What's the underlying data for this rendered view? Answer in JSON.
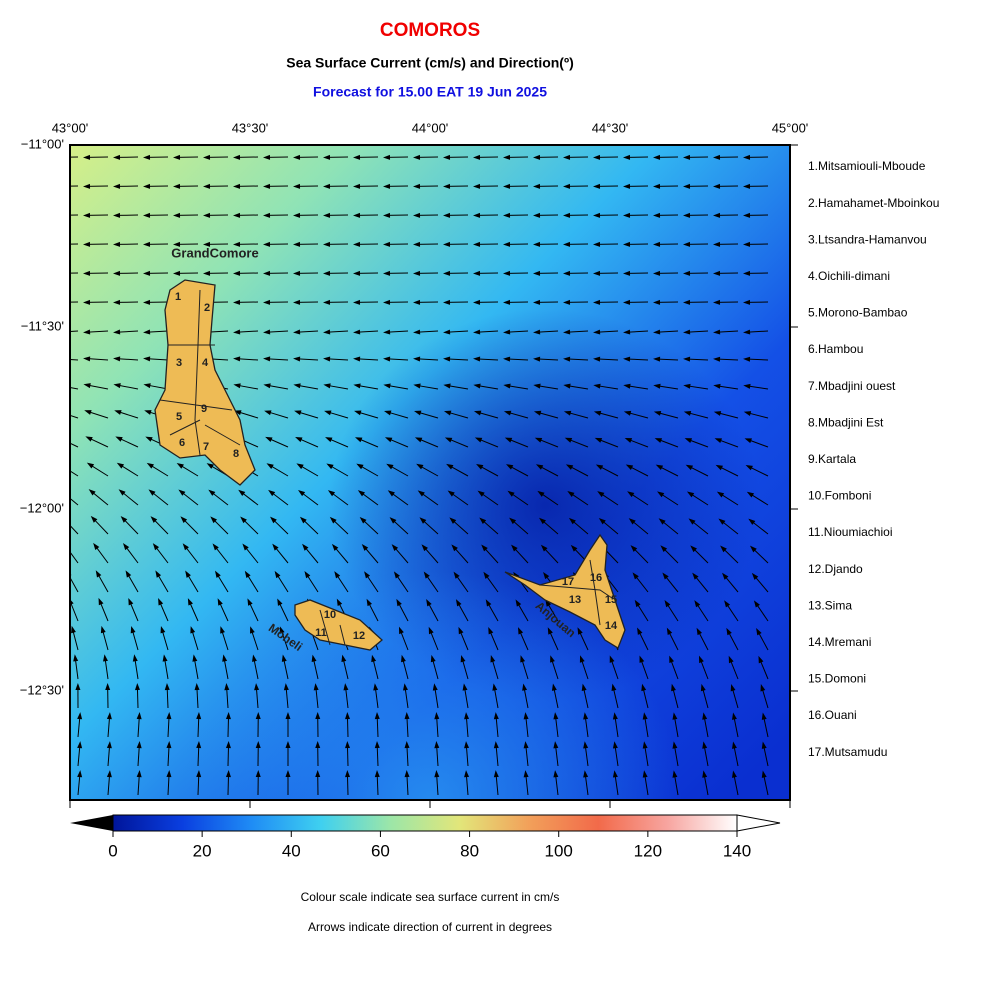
{
  "header": {
    "title": "COMOROS",
    "subtitle": "Sea Surface Current (cm/s) and Direction(º)",
    "forecast": "Forecast for  15.00 EAT 19 Jun 2025"
  },
  "map": {
    "lon_labels": [
      "43°00'",
      "43°30'",
      "44°00'",
      "44°30'",
      "45°00'"
    ],
    "lat_labels": [
      "−11°00'",
      "−11°30'",
      "−12°00'",
      "−12°30'"
    ],
    "island_labels": [
      "GrandComore",
      "Moheli",
      "Anjouan"
    ],
    "region_numbers": [
      "1",
      "2",
      "3",
      "4",
      "5",
      "6",
      "7",
      "8",
      "9",
      "10",
      "11",
      "12",
      "13",
      "14",
      "15",
      "16",
      "17"
    ]
  },
  "legend": {
    "regions": [
      "1.Mitsamiouli-Mboude",
      "2.Hamahamet-Mboinkou",
      "3.Ltsandra-Hamanvou",
      "4.Oichili-dimani",
      "5.Morono-Bambao",
      "6.Hambou",
      "7.Mbadjini ouest",
      "8.Mbadjini Est",
      "9.Kartala",
      "10.Fomboni",
      "11.Nioumiachioi",
      "12.Djando",
      "13.Sima",
      "14.Mremani",
      "15.Domoni",
      "16.Ouani",
      "17.Mutsamudu"
    ]
  },
  "colorbar": {
    "range": [
      0,
      140
    ],
    "ticks": [
      0,
      20,
      40,
      60,
      80,
      100,
      120,
      140
    ],
    "colors": [
      "#00159a",
      "#0a3fe0",
      "#1f8cf5",
      "#3fd0f0",
      "#9ce6a8",
      "#e2e67a",
      "#f2a05a",
      "#f26a4a",
      "#f7a5a0",
      "#ffffff"
    ]
  },
  "notes": [
    "Colour scale indicate sea surface current in cm/s",
    "Arrows indicate direction of current in degrees"
  ]
}
